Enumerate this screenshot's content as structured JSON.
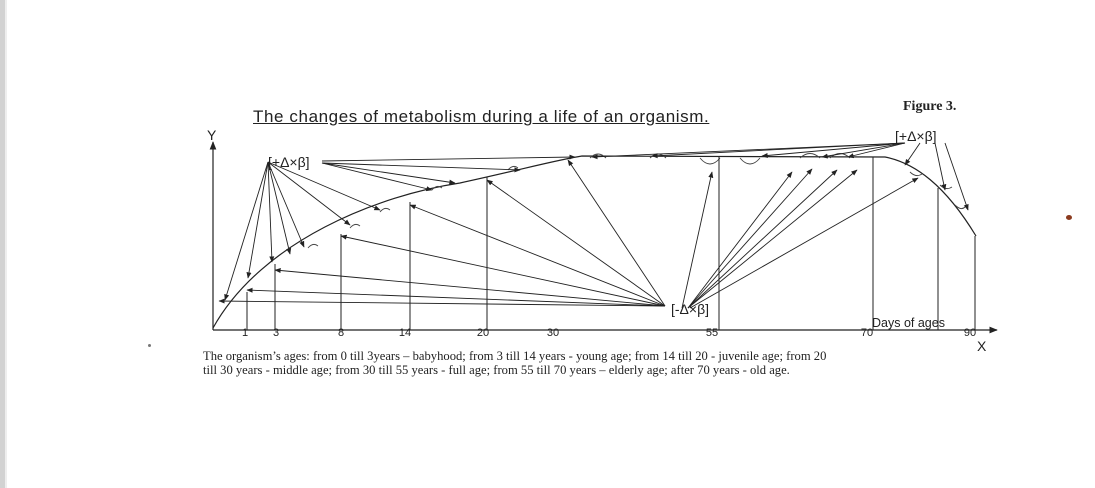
{
  "figure_label": "Figure 3.",
  "title": "The changes of metabolism during a life of an organism.",
  "axes": {
    "y_label": "Y",
    "x_label": "X",
    "x_axis_title": "Days of ages",
    "x_ticks": [
      "1",
      "3",
      "8",
      "14",
      "20",
      "30",
      "55",
      "70",
      "90"
    ]
  },
  "annotations": {
    "plus_left": "[+Δ×β]",
    "plus_right": "[+Δ×β]",
    "minus_center": "[-Δ×β]"
  },
  "caption": {
    "line1": "The organism’s ages: from 0 till 3years – babyhood; from 3 till 14 years - young age; from 14 till 20 - juvenile age; from 20",
    "line2": "till 30 years - middle age; from 30 till 55 years - full age; from 55 till 70 years – elderly age; after 70 years - old age."
  }
}
